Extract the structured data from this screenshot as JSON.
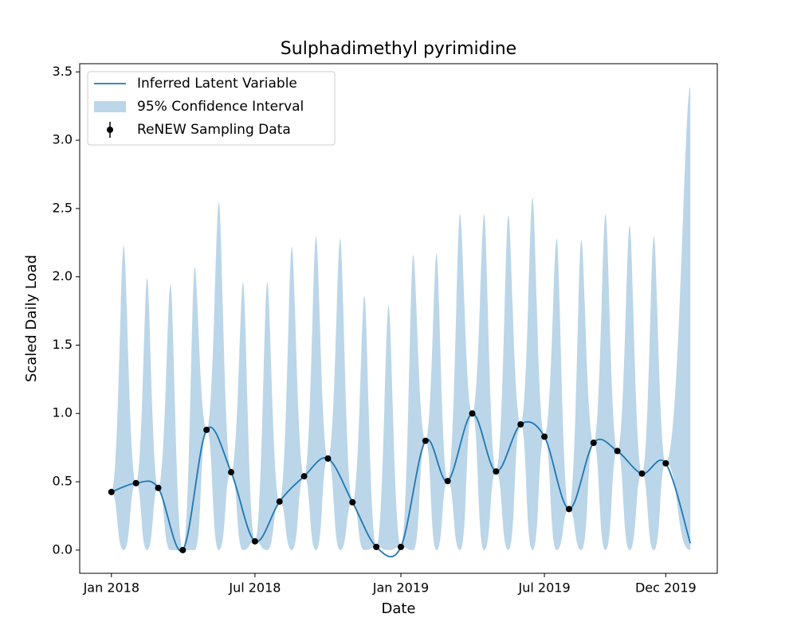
{
  "chart_data": {
    "type": "line",
    "title": "Sulphadimethyl pyrimidine",
    "xlabel": "Date",
    "ylabel": "Scaled Daily Load",
    "xlim": [
      "2017-11-22",
      "2020-02-04"
    ],
    "xticks": [
      {
        "value": "2018-01",
        "label": "Jan 2018"
      },
      {
        "value": "2018-07",
        "label": "Jul 2018"
      },
      {
        "value": "2019-01",
        "label": "Jan 2019"
      },
      {
        "value": "2019-07",
        "label": "Jul 2019"
      },
      {
        "value": "2019-12",
        "label": "Dec 2019"
      }
    ],
    "ylim": [
      -0.17,
      3.56
    ],
    "yticks": [
      {
        "value": 0,
        "label": "0.0"
      },
      0.5,
      {
        "value": 1,
        "label": "1.0"
      },
      1.5,
      {
        "value": 2,
        "label": "2.0"
      },
      2.5,
      {
        "value": 3,
        "label": "3.0"
      },
      3.5
    ],
    "legend": "upper left",
    "series": [
      {
        "name": "Inferred Latent Variable",
        "color": "#1f77b4",
        "x": [
          "2018-01",
          "2018-02",
          "2018-03",
          "2018-04",
          "2018-05",
          "2018-06",
          "2018-07",
          "2018-08",
          "2018-09",
          "2018-10",
          "2018-11",
          "2018-12",
          "2019-01",
          "2019-02",
          "2019-03",
          "2019-04",
          "2019-05",
          "2019-06",
          "2019-07",
          "2019-08",
          "2019-09",
          "2019-10",
          "2019-11",
          "2019-12",
          "2020-01"
        ],
        "values": [
          0.425,
          0.49,
          0.455,
          0.0,
          0.88,
          0.57,
          0.064,
          0.355,
          0.54,
          0.67,
          0.35,
          0.023,
          0.023,
          0.8,
          0.505,
          1.0,
          0.575,
          0.92,
          0.83,
          0.3,
          0.785,
          0.725,
          0.56,
          0.635,
          0.05
        ]
      },
      {
        "name": "ReNEW Sampling Data",
        "color": "#000000",
        "x": [
          "2018-01",
          "2018-02",
          "2018-03",
          "2018-04",
          "2018-05",
          "2018-06",
          "2018-07",
          "2018-08",
          "2018-09",
          "2018-10",
          "2018-11",
          "2018-12",
          "2019-01",
          "2019-02",
          "2019-03",
          "2019-04",
          "2019-05",
          "2019-06",
          "2019-07",
          "2019-08",
          "2019-09",
          "2019-10",
          "2019-11",
          "2019-12"
        ],
        "values": [
          0.425,
          0.49,
          0.455,
          0.0,
          0.88,
          0.57,
          0.064,
          0.355,
          0.54,
          0.67,
          0.35,
          0.023,
          0.023,
          0.8,
          0.505,
          1.0,
          0.575,
          0.92,
          0.83,
          0.3,
          0.785,
          0.725,
          0.56,
          0.635
        ]
      }
    ],
    "ci": {
      "name": "95% Confidence Interval",
      "color": "#1f77b4",
      "upper": [
        2.23,
        1.99,
        1.945,
        2.07,
        2.545,
        1.96,
        1.96,
        2.22,
        2.295,
        2.28,
        1.86,
        1.79,
        2.16,
        2.17,
        2.46,
        2.46,
        2.45,
        2.58,
        2.28,
        2.27,
        2.46,
        2.375,
        2.3,
        3.39
      ],
      "lower": [
        0,
        0,
        0,
        0,
        0,
        0,
        0,
        0,
        0,
        0,
        0,
        0,
        0,
        0,
        0,
        0,
        0,
        0,
        0,
        0,
        0,
        0,
        0,
        0
      ]
    }
  }
}
